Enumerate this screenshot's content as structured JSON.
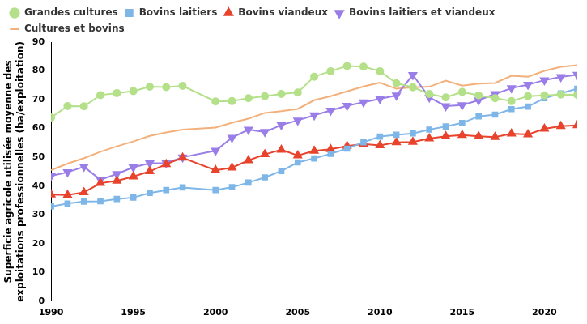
{
  "chart_data": {
    "type": "line",
    "ylabel": [
      "Superficie agricole utilisée moyenne des",
      "exploitations professionnelles (ha/exploitation)"
    ],
    "x": [
      1990,
      1991,
      1992,
      1993,
      1994,
      1995,
      1996,
      1997,
      1998,
      2000,
      2001,
      2002,
      2003,
      2004,
      2005,
      2006,
      2007,
      2008,
      2009,
      2010,
      2011,
      2012,
      2013,
      2014,
      2015,
      2016,
      2017,
      2018,
      2019,
      2020,
      2021,
      2022
    ],
    "series": [
      {
        "name": "Grandes cultures",
        "color": "#b5e08a",
        "marker": "circle",
        "values": [
          63.8,
          67.8,
          67.7,
          71.6,
          72.3,
          73.0,
          74.5,
          74.4,
          74.8,
          69.4,
          69.5,
          70.5,
          71.2,
          72.0,
          72.5,
          78.0,
          79.9,
          81.7,
          81.5,
          79.9,
          75.7,
          74.3,
          72.0,
          70.8,
          72.7,
          71.5,
          70.5,
          69.5,
          71.2,
          71.5,
          71.8,
          71.7
        ]
      },
      {
        "name": "Bovins laitiers",
        "color": "#7eb6e8",
        "marker": "square",
        "values": [
          32.9,
          33.9,
          34.6,
          34.7,
          35.5,
          36.0,
          37.6,
          38.6,
          39.5,
          38.6,
          39.6,
          41.2,
          43.0,
          45.2,
          48.2,
          49.6,
          51.2,
          53.0,
          55.2,
          57.2,
          57.8,
          58.3,
          59.6,
          60.7,
          61.9,
          64.2,
          64.8,
          66.7,
          67.6,
          70.5,
          72.2,
          73.8
        ]
      },
      {
        "name": "Bovins viandeux",
        "color": "#e8432d",
        "marker": "triangle-up",
        "values": [
          37.0,
          36.9,
          37.8,
          41.0,
          41.8,
          43.3,
          45.1,
          47.6,
          49.8,
          45.5,
          46.4,
          48.9,
          51.0,
          52.6,
          50.6,
          52.2,
          52.8,
          53.9,
          54.6,
          54.1,
          55.2,
          55.3,
          56.5,
          57.3,
          57.7,
          57.3,
          57.0,
          58.2,
          57.9,
          59.9,
          60.8,
          61.1
        ]
      },
      {
        "name": "Bovins laitiers et viandeux",
        "color": "#9a7ee8",
        "marker": "triangle-down",
        "values": [
          43.5,
          44.8,
          46.7,
          42.2,
          44.2,
          46.5,
          47.9,
          48.0,
          50.0,
          52.3,
          56.8,
          59.6,
          58.8,
          61.2,
          62.8,
          64.6,
          66.2,
          67.9,
          69.1,
          70.3,
          71.5,
          78.6,
          70.8,
          67.8,
          68.1,
          69.8,
          72.0,
          74.0,
          75.2,
          76.8,
          77.9,
          78.7
        ]
      },
      {
        "name": "Cultures et bovins",
        "color": "#f4b07a",
        "marker": "none",
        "values": [
          45.5,
          47.8,
          49.7,
          51.9,
          53.8,
          55.5,
          57.4,
          58.6,
          59.6,
          60.3,
          62.0,
          63.4,
          65.4,
          66.0,
          66.8,
          69.8,
          71.2,
          72.9,
          74.6,
          75.9,
          73.8,
          74.3,
          74.5,
          76.6,
          74.9,
          75.6,
          75.8,
          78.3,
          78.0,
          80.0,
          81.4,
          82.0
        ]
      }
    ],
    "xlim": [
      1990,
      2022
    ],
    "xticks": [
      1990,
      1995,
      2000,
      2005,
      2010,
      2015,
      2020
    ],
    "ylim": [
      0,
      90
    ],
    "yticks": [
      0,
      10,
      20,
      30,
      40,
      50,
      60,
      70,
      80,
      90
    ],
    "grid": false,
    "legend": "top"
  }
}
